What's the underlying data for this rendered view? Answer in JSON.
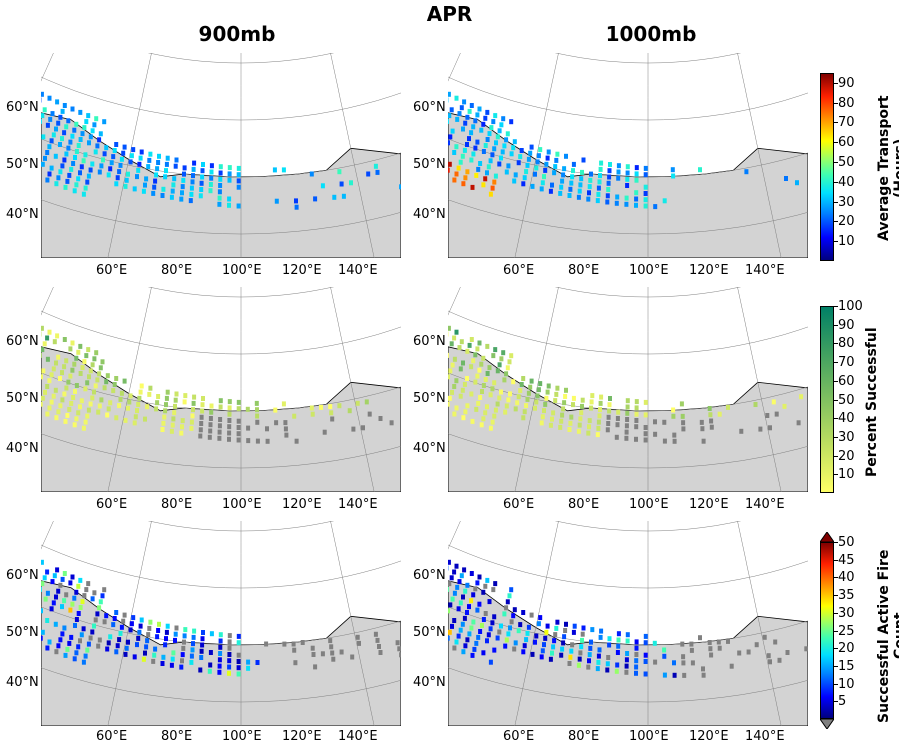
{
  "title": "APR",
  "columns": [
    "900mb",
    "1000mb"
  ],
  "lat_labels": [
    "60°N",
    "50°N",
    "40°N"
  ],
  "lon_labels": [
    "60°E",
    "80°E",
    "100°E",
    "120°E",
    "140°E"
  ],
  "rows": [
    {
      "name": "transport",
      "colorbar_label": "Average Transport\n(Hours)",
      "colorbar_ticks": [
        "90",
        "80",
        "70",
        "60",
        "50",
        "40",
        "30",
        "20",
        "10"
      ],
      "colormap": "jet"
    },
    {
      "name": "percent",
      "colorbar_label": "Percent Successful",
      "colorbar_ticks": [
        "100",
        "90",
        "80",
        "70",
        "60",
        "50",
        "40",
        "30",
        "20",
        "10"
      ],
      "colormap": "summer"
    },
    {
      "name": "count",
      "colorbar_label": "Successful Active Fire\nCount",
      "colorbar_ticks": [
        "50",
        "45",
        "40",
        "35",
        "30",
        "25",
        "20",
        "15",
        "10",
        "5"
      ],
      "colormap": "jet-extend"
    }
  ],
  "colors": {
    "ocean": "#d3d3d3",
    "land": "#ffffff",
    "grid": "#808080",
    "unsuccessful": "#808080"
  }
}
